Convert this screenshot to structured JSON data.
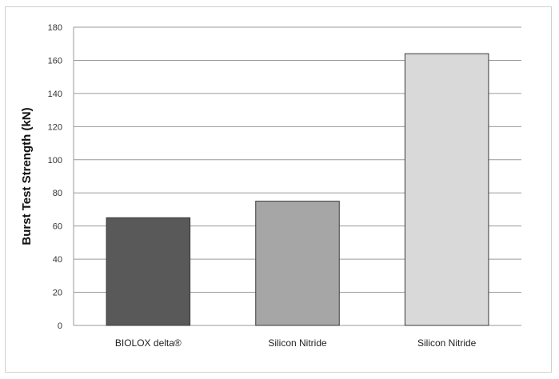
{
  "chart_data": {
    "type": "bar",
    "title": "",
    "xlabel": "",
    "ylabel": "Burst Test Strength (kN)",
    "ylim": [
      0,
      180
    ],
    "yticks": [
      0,
      20,
      40,
      60,
      80,
      100,
      120,
      140,
      160,
      180
    ],
    "categories": [
      "BIOLOX delta®",
      "Silicon Nitride",
      "Silicon Nitride"
    ],
    "values": [
      65,
      75,
      164
    ],
    "bar_colors": [
      "#595959",
      "#a6a6a6",
      "#d9d9d9"
    ],
    "grid": true,
    "legend": "none"
  }
}
